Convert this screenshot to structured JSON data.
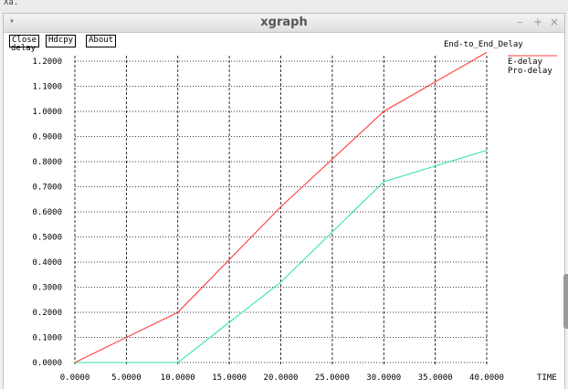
{
  "top_label": "Xa.",
  "window": {
    "title": "xgraph",
    "menu_icon": "▾",
    "minimize": "–",
    "maximize": "+",
    "close": "×"
  },
  "buttons": {
    "close": "Close",
    "hdcpy": "Hdcpy",
    "about": "About"
  },
  "chart_data": {
    "type": "line",
    "title": "End-to_End_Delay",
    "xlabel": "TIME",
    "ylabel": "delay",
    "xlim": [
      0,
      40
    ],
    "ylim": [
      0,
      1.2
    ],
    "x_ticks": [
      0,
      5,
      10,
      15,
      20,
      25,
      30,
      35,
      40
    ],
    "y_ticks": [
      0,
      0.1,
      0.2,
      0.3,
      0.4,
      0.5,
      0.6,
      0.7,
      0.8,
      0.9,
      1.0,
      1.1,
      1.2
    ],
    "x_tick_labels": [
      "0.0000",
      "5.0000",
      "10.0000",
      "15.0000",
      "20.0000",
      "25.0000",
      "30.0000",
      "35.0000",
      "40.0000"
    ],
    "y_tick_labels": [
      "0.0000",
      "0.1000",
      "0.2000",
      "0.3000",
      "0.4000",
      "0.5000",
      "0.6000",
      "0.7000",
      "0.8000",
      "0.9000",
      "1.0000",
      "1.1000",
      "1.2000"
    ],
    "grid": true,
    "legend_position": "top-right",
    "series": [
      {
        "name": "E-delay",
        "color": "#ff3b3b",
        "x": [
          0,
          10,
          20,
          30,
          40
        ],
        "y": [
          0,
          0.2,
          0.62,
          1.0,
          1.235
        ]
      },
      {
        "name": "Pro-delay",
        "color": "#33e6a0",
        "x": [
          0,
          10,
          20,
          30,
          40
        ],
        "y": [
          0,
          0,
          0.32,
          0.72,
          0.845
        ]
      }
    ]
  }
}
